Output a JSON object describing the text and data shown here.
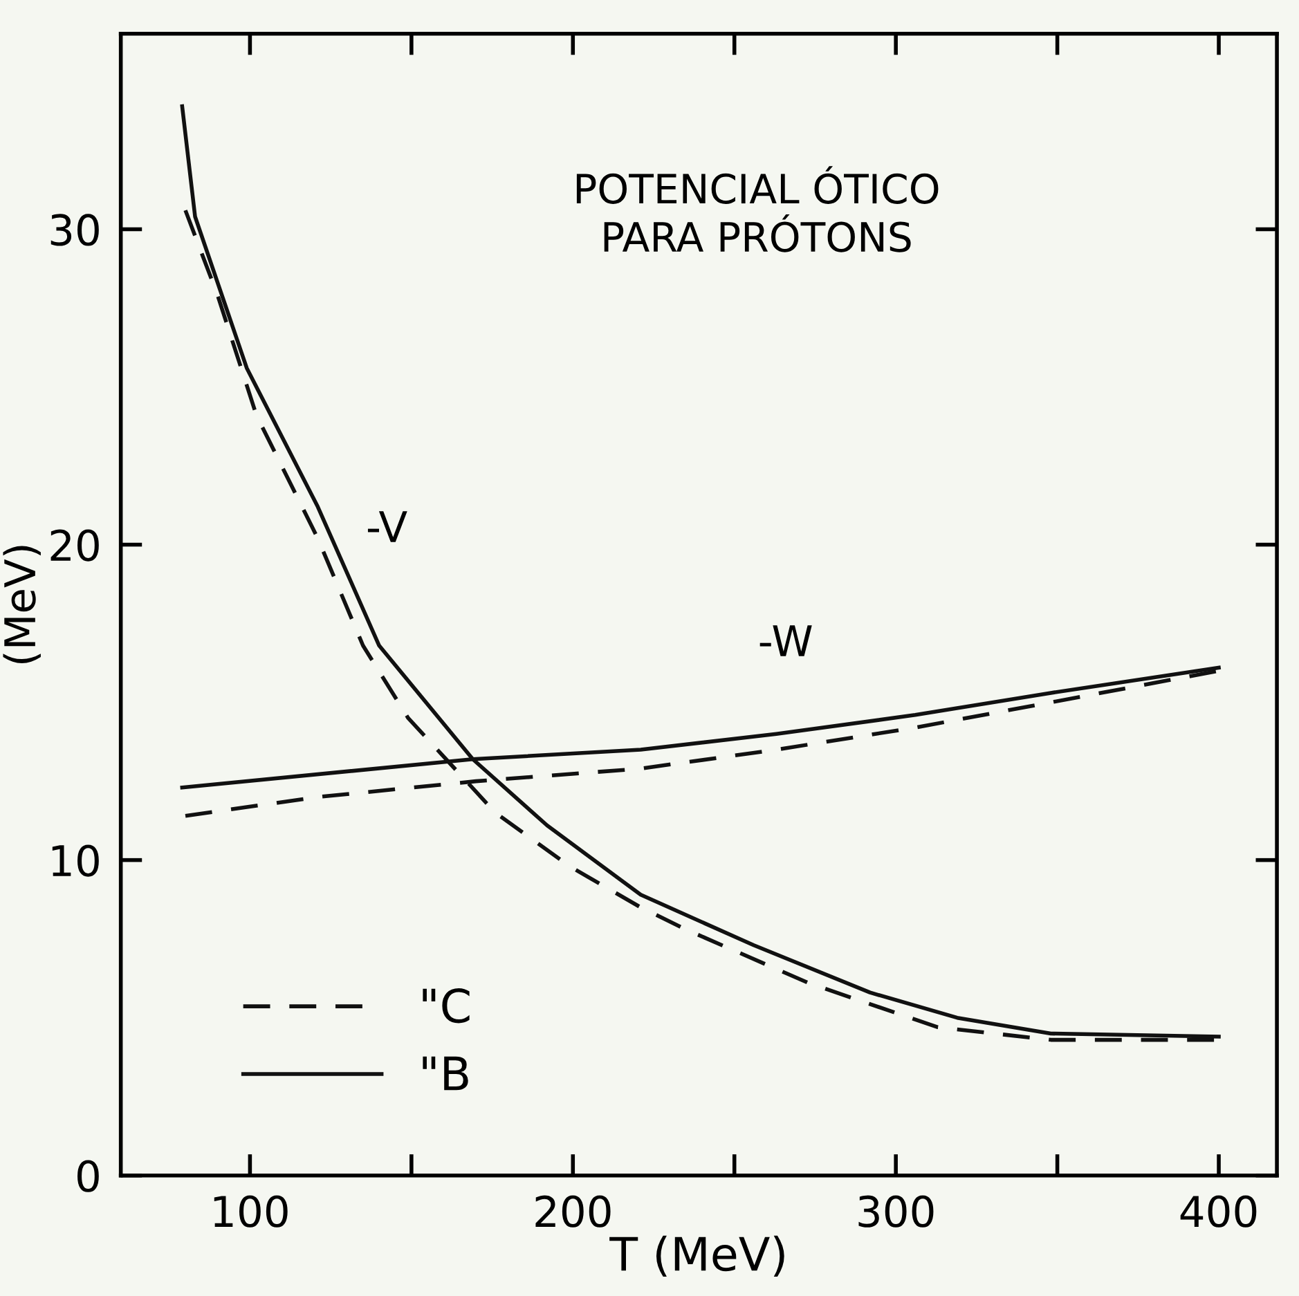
{
  "chart_data": {
    "type": "line",
    "title": "POTENCIAL ÓTICO\nPARA PRÓTONS",
    "xlabel": "T (MeV)",
    "ylabel": "(MeV)",
    "xlim": [
      60,
      418
    ],
    "ylim": [
      0,
      36.2
    ],
    "xticks": [
      100,
      {
        "value": 150,
        "label": null
      },
      200,
      {
        "value": 250,
        "label": null
      },
      300,
      {
        "value": 350,
        "label": null
      },
      400
    ],
    "yticks": [
      0,
      10,
      20,
      30
    ],
    "grid": false,
    "legend": "bottom left",
    "marker": "none",
    "series": [
      {
        "name": "\"C",
        "color": "#111111",
        "line_style": "dashed",
        "x": [
          80,
          90,
          102,
          121,
          135,
          149,
          176,
          199,
          221,
          235,
          273,
          313,
          348,
          400
        ],
        "values": [
          30.6,
          27.9,
          24.1,
          20.2,
          16.8,
          14.5,
          11.5,
          9.8,
          8.5,
          7.8,
          6.1,
          4.7,
          4.3,
          4.3
        ]
      },
      {
        "name": "\"B",
        "color": "#111111",
        "line_style": "solid",
        "x": [
          79,
          83,
          99,
          121,
          140,
          169,
          192,
          221,
          256,
          292,
          319,
          348,
          400
        ],
        "values": [
          33.9,
          30.4,
          25.6,
          21.2,
          16.8,
          13.2,
          11.1,
          8.9,
          7.3,
          5.8,
          5.0,
          4.5,
          4.4
        ]
      },
      {
        "color": "#111111",
        "line_style": "dashed",
        "x": [
          80,
          121,
          170,
          221,
          263,
          306,
          348,
          400
        ],
        "values": [
          11.4,
          12.0,
          12.5,
          12.9,
          13.5,
          14.2,
          15.0,
          16.0
        ]
      },
      {
        "color": "#111111",
        "line_style": "solid",
        "x": [
          79,
          169,
          221,
          263,
          306,
          348,
          400
        ],
        "values": [
          12.3,
          13.2,
          13.5,
          14.0,
          14.6,
          15.3,
          16.1
        ]
      }
    ],
    "annotations": [
      "-V",
      "-W"
    ]
  }
}
